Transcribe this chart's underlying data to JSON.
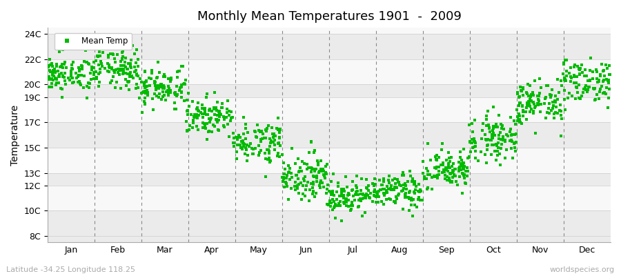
{
  "title": "Monthly Mean Temperatures 1901  -  2009",
  "ylabel": "Temperature",
  "yticks": [
    8,
    10,
    12,
    13,
    15,
    17,
    19,
    20,
    22,
    24
  ],
  "ytick_labels": [
    "8C",
    "10C",
    "12C",
    "13C",
    "15C",
    "17C",
    "19C",
    "20C",
    "22C",
    "24C"
  ],
  "ylim": [
    7.5,
    24.5
  ],
  "months": [
    "Jan",
    "Feb",
    "Mar",
    "Apr",
    "May",
    "Jun",
    "Jul",
    "Aug",
    "Sep",
    "Oct",
    "Nov",
    "Dec"
  ],
  "marker_color": "#00BB00",
  "marker": "s",
  "marker_size": 2.5,
  "legend_label": "Mean Temp",
  "subtitle_left": "Latitude -34.25 Longitude 118.25",
  "subtitle_right": "worldspecies.org",
  "background_color": "#ffffff",
  "band_colors": [
    "#ebebeb",
    "#f8f8f8"
  ],
  "n_years": 109,
  "monthly_means": [
    20.8,
    21.2,
    19.8,
    17.5,
    15.5,
    12.8,
    11.2,
    11.5,
    13.2,
    15.8,
    18.5,
    20.3
  ],
  "monthly_stds": [
    0.7,
    0.8,
    0.8,
    0.7,
    0.8,
    0.9,
    0.7,
    0.7,
    0.8,
    0.9,
    0.9,
    0.9
  ],
  "seed": 42
}
